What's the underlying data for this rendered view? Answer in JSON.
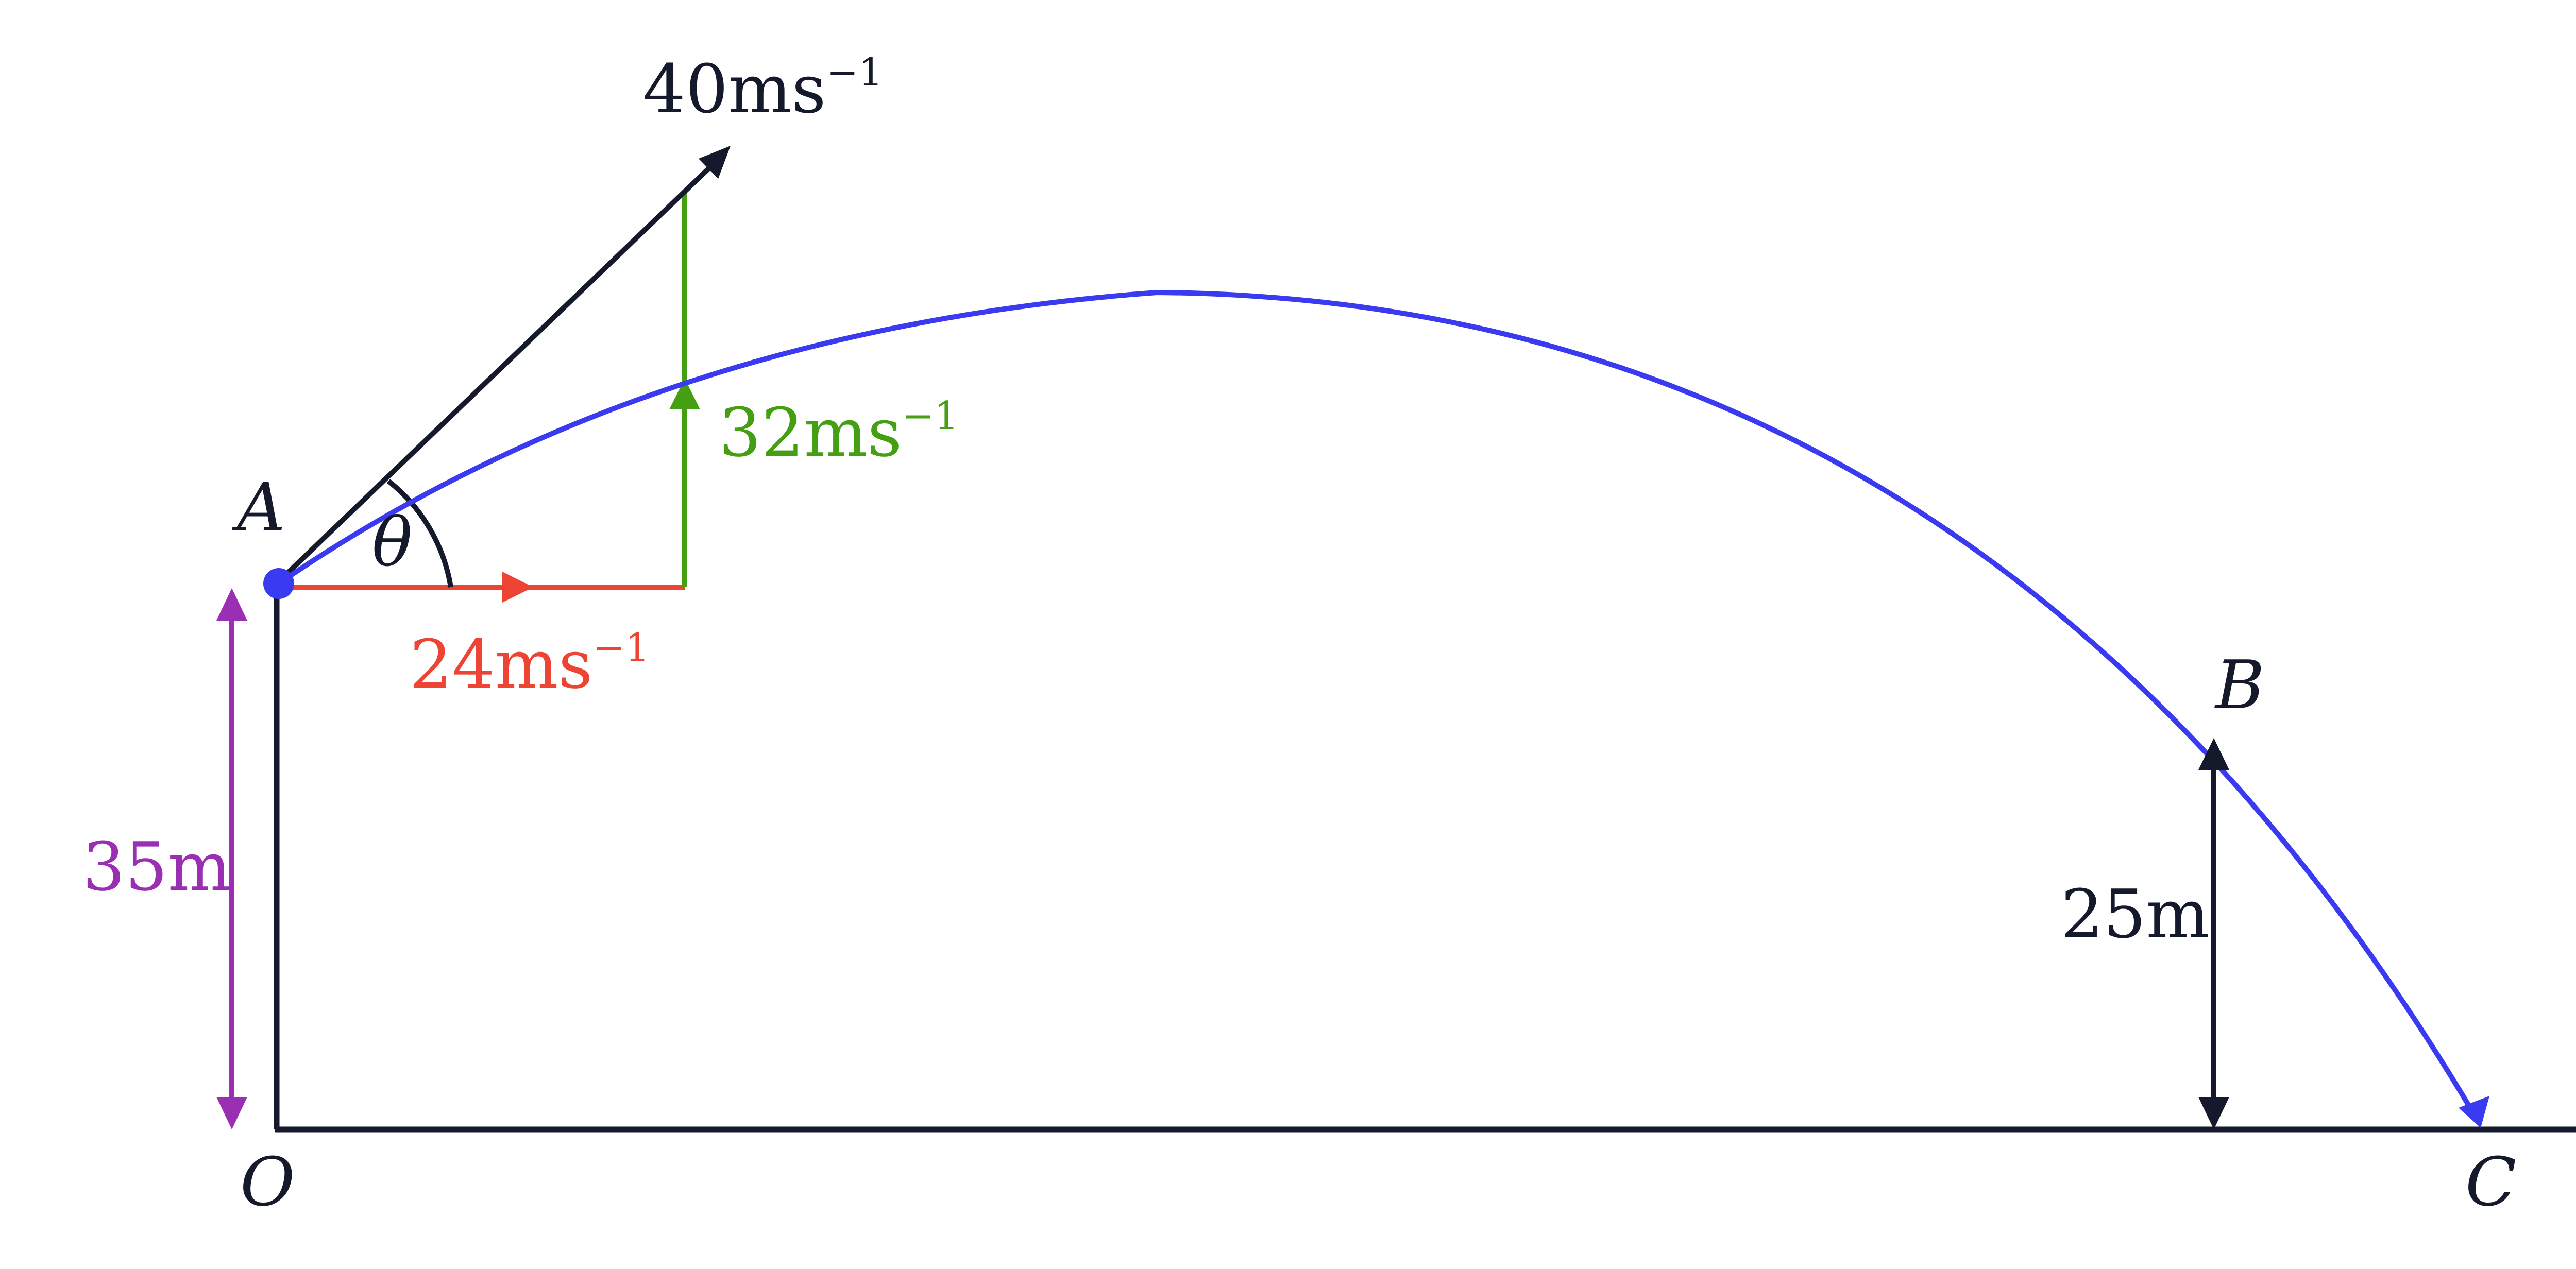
{
  "colors": {
    "ink": "#141a2b",
    "trajectory": "#3a3af0",
    "horizontal_component": "#ee4433",
    "vertical_component": "#44a012",
    "height_marker": "#9b2fb3"
  },
  "points": {
    "A": "A",
    "B": "B",
    "C": "C",
    "O": "O"
  },
  "angle": {
    "symbol": "θ"
  },
  "velocity": {
    "value": "40ms",
    "exponent": "−1"
  },
  "horizontal_component": {
    "value": "24ms",
    "exponent": "−1"
  },
  "vertical_component": {
    "value": "32ms",
    "exponent": "−1"
  },
  "heights": {
    "launch": "35m",
    "point_b": "25m"
  }
}
